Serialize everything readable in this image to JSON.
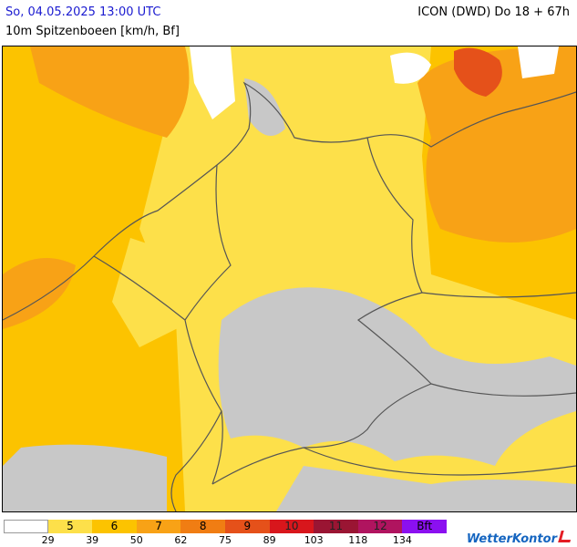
{
  "header": {
    "date": "So, 04.05.2025 13:00 UTC",
    "parameter": "10m Spitzenboeen [km/h, Bf]",
    "model": "ICON (DWD) Do 18 + 67h"
  },
  "legend": {
    "classes": [
      {
        "label": "",
        "color": "#ffffff"
      },
      {
        "label": "5",
        "color": "#fde04a"
      },
      {
        "label": "6",
        "color": "#fcc300"
      },
      {
        "label": "7",
        "color": "#f8a216"
      },
      {
        "label": "8",
        "color": "#f07d13"
      },
      {
        "label": "9",
        "color": "#e5511a"
      },
      {
        "label": "10",
        "color": "#d8161c"
      },
      {
        "label": "11",
        "color": "#9a1533"
      },
      {
        "label": "12",
        "color": "#b0145f"
      },
      {
        "label": "Bft",
        "color": "#8b10f0"
      }
    ],
    "ticks": [
      "29",
      "39",
      "50",
      "62",
      "75",
      "89",
      "103",
      "118",
      "134"
    ]
  },
  "brand": "WetterKontor",
  "colors": {
    "calm": "#c8c8c8",
    "border": "#555555"
  }
}
